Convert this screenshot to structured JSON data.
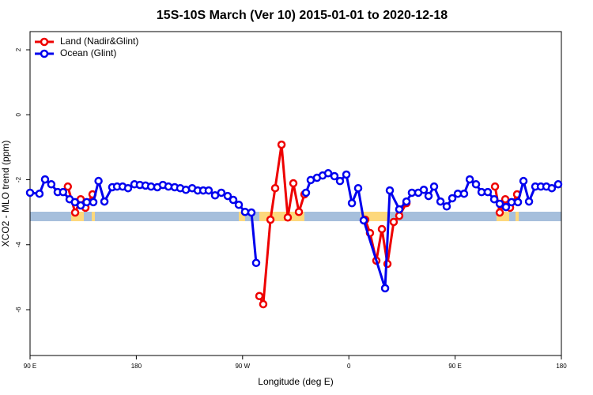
{
  "chart_data": {
    "type": "line",
    "title": "15S-10S March (Ver 10)   2015-01-01 to 2020-12-18",
    "x_label": "Longitude (deg E)",
    "y_label": "XCO2 - MLO trend (ppm)",
    "xlim": [
      90,
      540
    ],
    "ylim": [
      -7.41,
      2.56
    ],
    "xticks": [
      {
        "value": 90,
        "label": "90 E"
      },
      180,
      {
        "value": 270,
        "label": "90 W"
      },
      {
        "value": 360,
        "label": "0"
      },
      {
        "value": 450,
        "label": "90 E"
      },
      {
        "value": 540,
        "label": "180"
      }
    ],
    "yticks": [
      -6,
      -4,
      -2,
      0,
      2
    ],
    "legend": "topleft",
    "series": [
      {
        "name": "Land (Nadir&Glint)",
        "color": "#ee0000",
        "x": [
          122,
          128.2,
          132.9,
          136.9,
          142.9,
          null,
          284.2,
          287.5,
          293.6,
          297.6,
          303,
          308.3,
          313,
          317.7,
          322.4,
          null,
          373.9,
          377.9,
          383.3,
          388,
          392.7,
          398,
          402.7,
          408.8,
          null,
          483.8,
          487.8,
          492.5,
          496.5,
          502.5
        ],
        "values": [
          -2.21,
          -3.01,
          -2.6,
          -2.86,
          -2.45,
          null,
          -5.58,
          -5.83,
          -3.23,
          -2.26,
          -0.92,
          -3.16,
          -2.11,
          -2.99,
          -2.45,
          null,
          -3.23,
          -3.64,
          -4.49,
          -3.52,
          -4.59,
          -3.3,
          -3.11,
          -2.72,
          null,
          -2.21,
          -3.01,
          -2.6,
          -2.86,
          -2.45
        ]
      },
      {
        "name": "Ocean (Glint)",
        "color": "#0000ee",
        "x": [
          90,
          98,
          102.7,
          108,
          113.4,
          118,
          123.5,
          128,
          132.9,
          138,
          143.6,
          148,
          153,
          159.6,
          163.7,
          168.4,
          173,
          178.4,
          183,
          187.8,
          192.5,
          197.8,
          202.5,
          207.2,
          212.5,
          217.2,
          222,
          227.3,
          232,
          236.7,
          241.3,
          246.7,
          252,
          257.4,
          262.1,
          266.8,
          272.1,
          277.5,
          281.5,
          null,
          323.7,
          327.7,
          333,
          337.8,
          342.5,
          347.8,
          352.5,
          357.9,
          362.6,
          367.9,
          372.6,
          390.7,
          394.7,
          402.7,
          408.8,
          413.4,
          418.8,
          423.5,
          427.5,
          432.2,
          437.6,
          442.9,
          447.6,
          452.3,
          457.6,
          462.4,
          467.7,
          472.4,
          477.7,
          483.1,
          487.8,
          493.1,
          497.8,
          503.2,
          507.9,
          512.6,
          517.9,
          522.6,
          527.3,
          531.9,
          537.3
        ],
        "values": [
          -2.4,
          -2.43,
          -1.99,
          -2.14,
          -2.38,
          -2.38,
          -2.6,
          -2.69,
          -2.79,
          -2.69,
          -2.69,
          -2.04,
          -2.67,
          -2.23,
          -2.21,
          -2.21,
          -2.26,
          -2.14,
          -2.16,
          -2.18,
          -2.21,
          -2.23,
          -2.16,
          -2.21,
          -2.23,
          -2.26,
          -2.31,
          -2.26,
          -2.33,
          -2.33,
          -2.33,
          -2.48,
          -2.4,
          -2.5,
          -2.62,
          -2.77,
          -2.99,
          -3.01,
          -4.56,
          null,
          -2.4,
          -2.01,
          -1.94,
          -1.87,
          -1.8,
          -1.89,
          -2.04,
          -1.84,
          -2.72,
          -2.26,
          -3.25,
          -5.34,
          -2.33,
          -2.91,
          -2.67,
          -2.4,
          -2.4,
          -2.31,
          -2.5,
          -2.21,
          -2.67,
          -2.82,
          -2.57,
          -2.43,
          -2.43,
          -1.99,
          -2.14,
          -2.38,
          -2.38,
          -2.6,
          -2.74,
          -2.84,
          -2.69,
          -2.69,
          -2.04,
          -2.67,
          -2.21,
          -2.21,
          -2.21,
          -2.26,
          -2.14
        ]
      }
    ]
  }
}
